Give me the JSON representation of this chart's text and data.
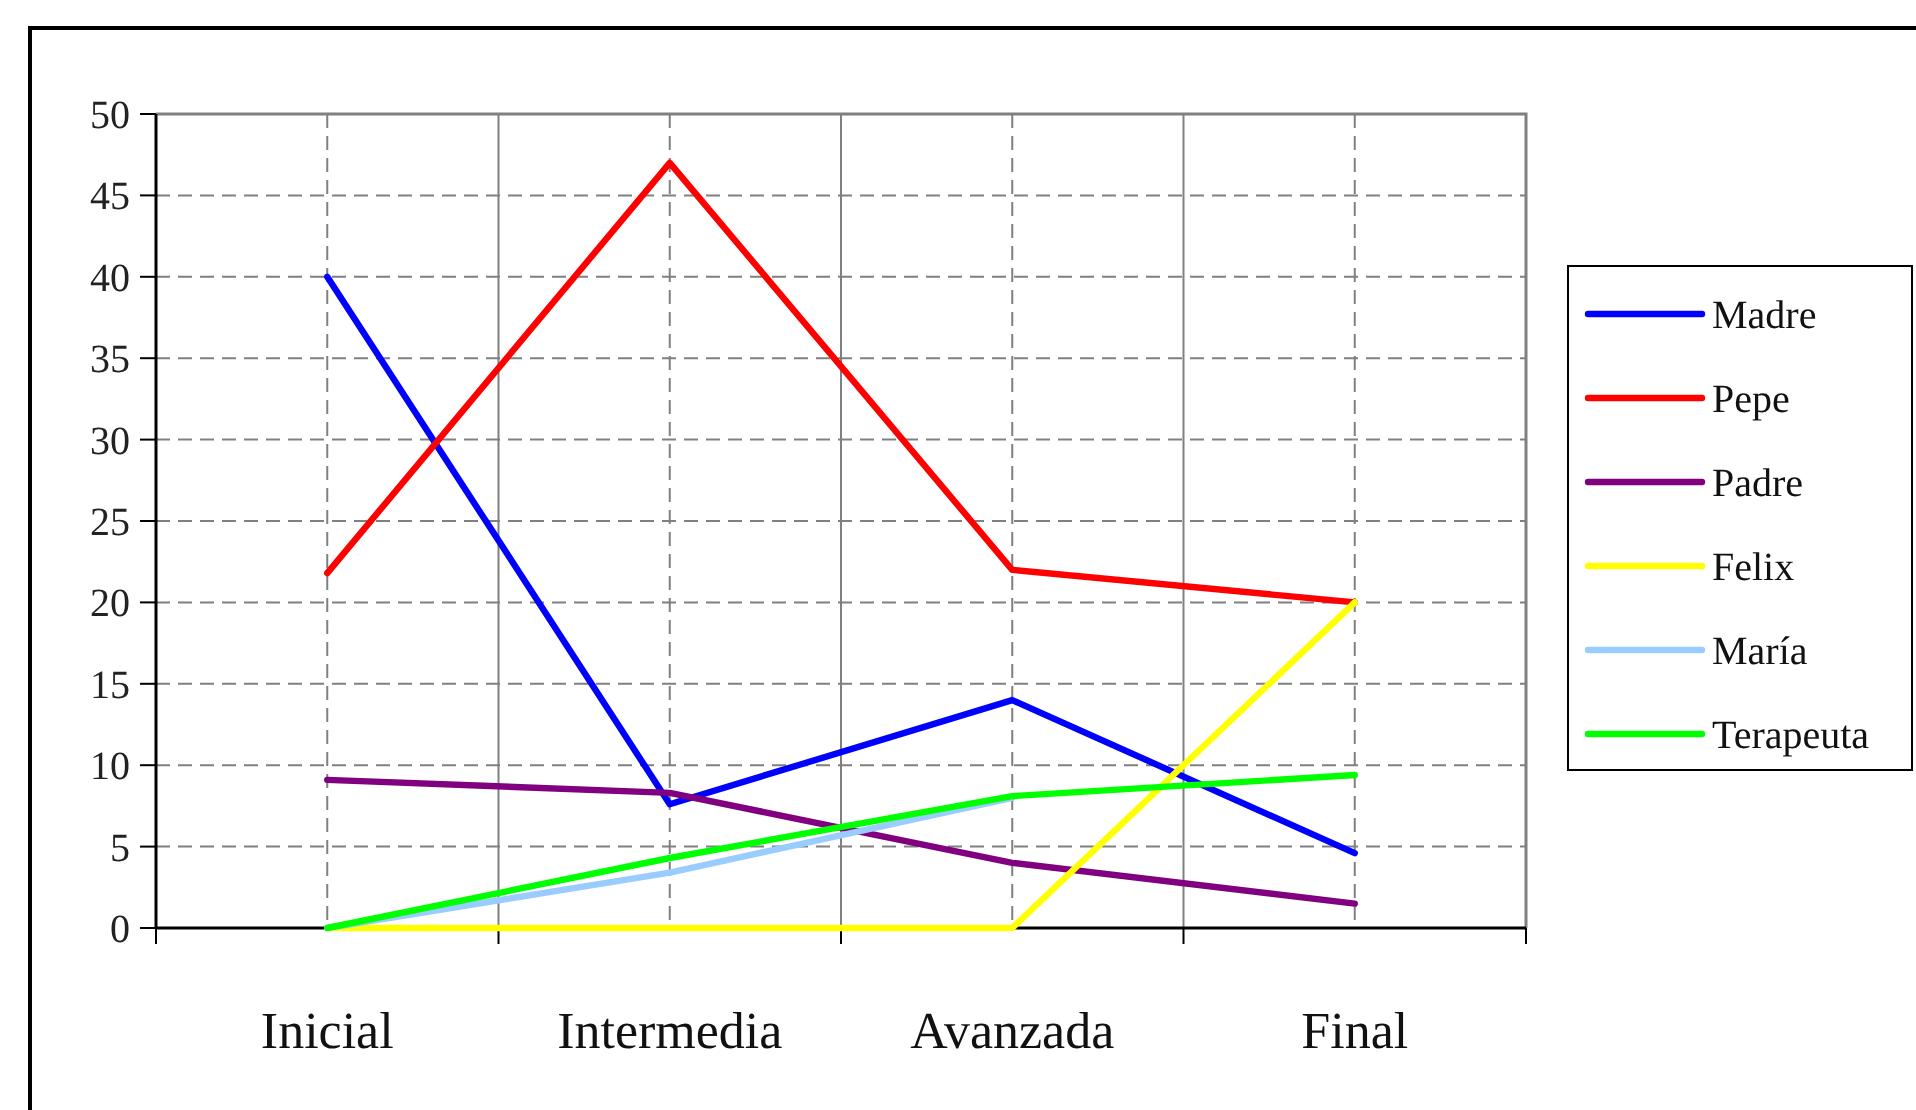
{
  "chart_data": {
    "type": "line",
    "categories": [
      "Inicial",
      "Intermedia",
      "Avanzada",
      "Final"
    ],
    "series": [
      {
        "name": "Madre",
        "color": "#0000ff",
        "values": [
          40,
          7.6,
          14,
          4.6
        ]
      },
      {
        "name": "Pepe",
        "color": "#ff0000",
        "values": [
          21.8,
          47,
          22,
          20
        ]
      },
      {
        "name": "Padre",
        "color": "#800080",
        "values": [
          9.1,
          8.3,
          4,
          1.5
        ]
      },
      {
        "name": "Felix",
        "color": "#ffff00",
        "values": [
          0,
          0,
          0,
          20
        ]
      },
      {
        "name": "María",
        "color": "#99ccff",
        "values": [
          0,
          3.4,
          8,
          null
        ]
      },
      {
        "name": "Terapeuta",
        "color": "#00ff00",
        "values": [
          0,
          4.3,
          8.1,
          9.4
        ]
      }
    ],
    "ylim": [
      0,
      50
    ],
    "yticks": [
      0,
      5,
      10,
      15,
      20,
      25,
      30,
      35,
      40,
      45,
      50
    ],
    "grid": true,
    "legend": "right"
  }
}
